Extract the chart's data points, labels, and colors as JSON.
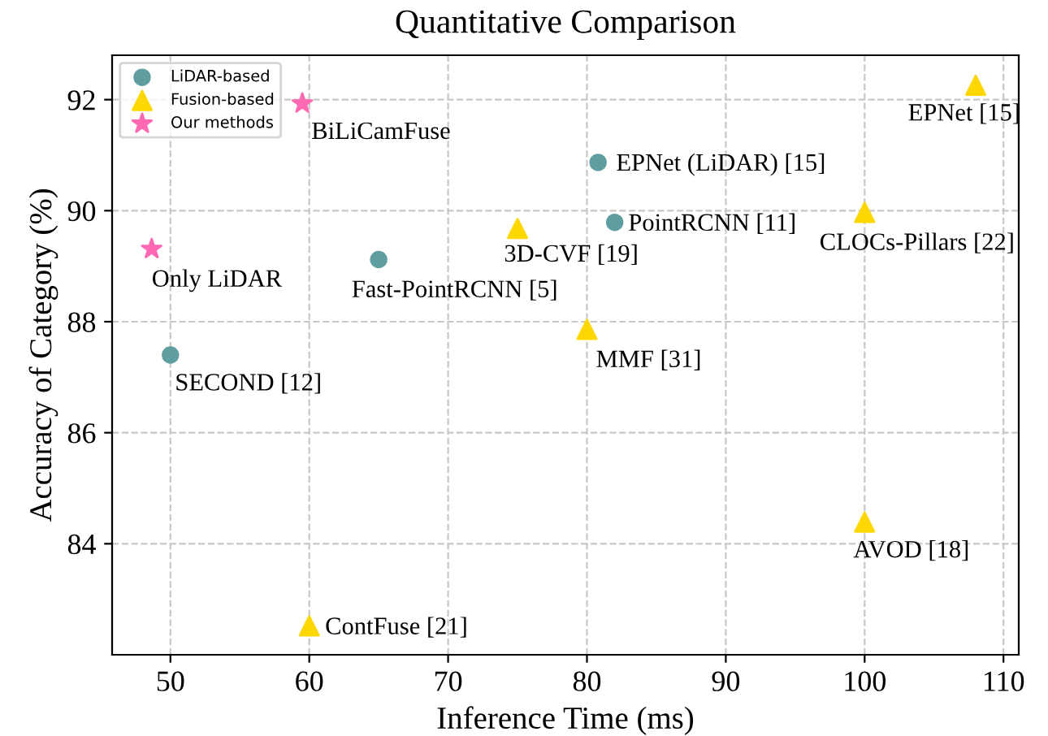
{
  "chart_data": {
    "type": "scatter",
    "title": "Quantitative Comparison",
    "xlabel": "Inference Time (ms)",
    "ylabel": "Accuracy of Category (%)",
    "xlim": [
      45.8,
      111.1
    ],
    "ylim": [
      82.0,
      92.8
    ],
    "xticks": [
      50,
      60,
      70,
      80,
      90,
      100,
      110
    ],
    "yticks": [
      84,
      86,
      88,
      90,
      92
    ],
    "grid": true,
    "legend": "top left",
    "series": [
      {
        "name": "LiDAR-based",
        "color": "#5f9ea0",
        "marker": "circle",
        "x": [
          50,
          65,
          80.8,
          82
        ],
        "values": [
          87.4,
          89.12,
          90.87,
          89.79
        ]
      },
      {
        "name": "Fusion-based",
        "color": "#ffd700",
        "marker": "triangle",
        "x": [
          75,
          80,
          100,
          108,
          100,
          60
        ],
        "values": [
          89.68,
          87.86,
          89.97,
          92.26,
          84.39,
          82.52
        ]
      },
      {
        "name": "Our methods",
        "color": "#ff69b4",
        "marker": "star",
        "x": [
          59.5,
          48.65
        ],
        "values": [
          91.93,
          89.31
        ]
      }
    ],
    "annotations": [
      {
        "text": "SECOND [12]",
        "x": 50,
        "y": 87.4
      },
      {
        "text": "Fast-PointRCNN [5]",
        "x": 65,
        "y": 89.12
      },
      {
        "text": "EPNet (LiDAR) [15]",
        "x": 80.8,
        "y": 90.87
      },
      {
        "text": "PointRCNN [11]",
        "x": 82,
        "y": 89.79
      },
      {
        "text": "3D-CVF [19]",
        "x": 75,
        "y": 89.68
      },
      {
        "text": "MMF [31]",
        "x": 80,
        "y": 87.86
      },
      {
        "text": "CLOCs-Pillars [22]",
        "x": 100,
        "y": 89.97
      },
      {
        "text": "EPNet [15]",
        "x": 108,
        "y": 92.26
      },
      {
        "text": "AVOD [18]",
        "x": 100,
        "y": 84.39
      },
      {
        "text": "ContFuse [21]",
        "x": 60,
        "y": 82.52
      },
      {
        "text": "BiLiCamFuse",
        "x": 59.5,
        "y": 91.93
      },
      {
        "text": "Only LiDAR",
        "x": 48.65,
        "y": 89.31
      }
    ]
  }
}
